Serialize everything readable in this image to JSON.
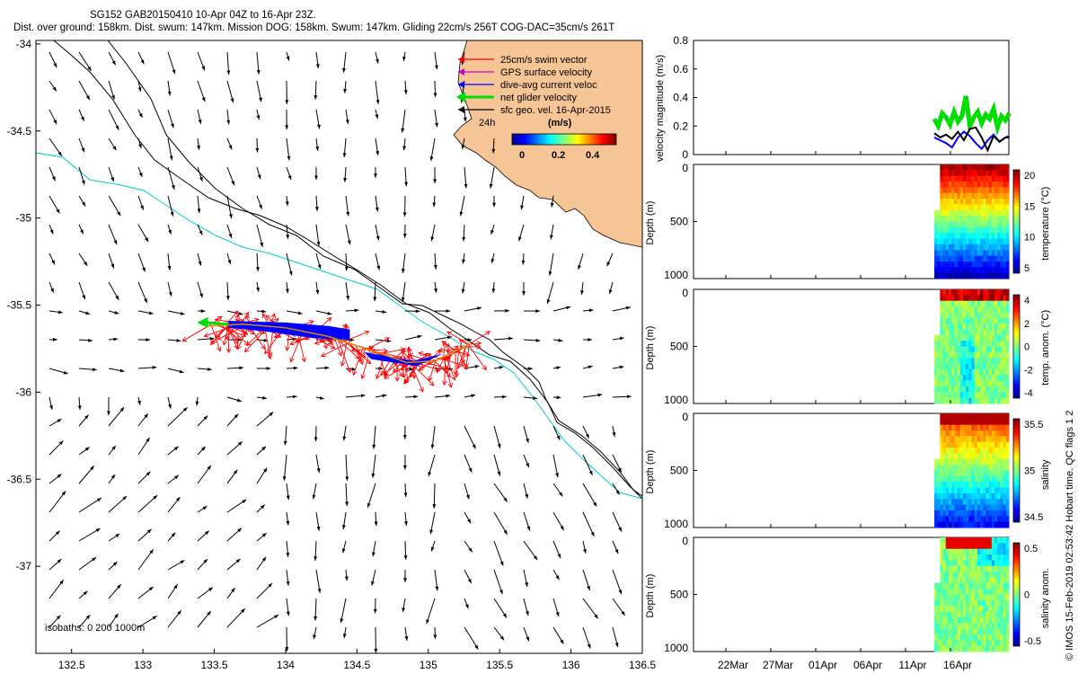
{
  "title_line1": "SG152 GAB20150410 10-Apr 04Z to 16-Apr 23Z.",
  "title_line2": "Dist. over ground: 158km. Dist. swum: 147km. Mission DOG: 158km. Swum: 147km. Gliding 22cm/s 256T COG-DAC=35cm/s 261T",
  "credit": "© IMOS 15-Feb-2019 02:53:42 Hobart time. QC flags 1  2",
  "colors": {
    "land": "#F6C596",
    "coast": "#000000",
    "isobath_0": "#000000",
    "isobath_200": "#000000",
    "isobath_1000": "#00CCCC",
    "swim": "#FF0000",
    "gps": "#CC00CC",
    "dac": "#0000FF",
    "net": "#00DD00",
    "sfc": "#000000"
  },
  "chart_data": [
    {
      "type": "scatter",
      "panel": "map",
      "xlim": [
        132.25,
        136.5
      ],
      "ylim": [
        -37.5,
        -33.98
      ],
      "x_ticks": [
        "132.5",
        "133",
        "133.5",
        "134",
        "134.5",
        "135",
        "135.5",
        "136",
        "136.5"
      ],
      "y_ticks": [
        "-34",
        "-34.5",
        "-35",
        "-35.5",
        "-36",
        "-36.5",
        "-37"
      ],
      "legend": {
        "placement": "top-right",
        "entries": [
          "25cm/s swim vector",
          "GPS surface velocity",
          "dive-avg current veloc",
          "net glider velocity",
          "sfc geo. vel. 16-Apr-2015"
        ],
        "scale_label": "24h"
      },
      "colorbar": {
        "label": "(m/s)",
        "ticks": [
          "0",
          "0.2",
          "0.4"
        ],
        "range": [
          0,
          0.45
        ]
      },
      "isobaths_label": "isobaths: 0   200  1000m",
      "glider_track": {
        "lon": [
          133.45,
          133.7,
          134.0,
          134.3,
          134.6,
          134.85,
          135.05,
          135.3
        ],
        "lat": [
          -35.62,
          -35.61,
          -35.63,
          -35.68,
          -35.76,
          -35.83,
          -35.82,
          -35.72
        ]
      },
      "net_glider_vector": {
        "start": [
          133.6,
          -35.61
        ],
        "end": [
          133.38,
          -35.6
        ]
      }
    },
    {
      "type": "line",
      "panel": "velocity",
      "ylabel": "velocity magnitude (m/s)",
      "ylim": [
        0,
        0.8
      ],
      "y_ticks": [
        "0",
        "0.2",
        "0.4",
        "0.6",
        "0.8"
      ],
      "x_ticks": [
        "22Mar",
        "27Mar",
        "01Apr",
        "06Apr",
        "11Apr",
        "16Apr"
      ],
      "series": [
        {
          "color": "#00DD00",
          "x": [
            0,
            0.4,
            0.8,
            1.2,
            1.6,
            2.0,
            2.4,
            2.8,
            3.2,
            3.6,
            4.0,
            4.4,
            4.8,
            5.2,
            5.6,
            6.0,
            6.4,
            6.8,
            7.2,
            7.6
          ],
          "y": [
            0.25,
            0.2,
            0.29,
            0.26,
            0.21,
            0.3,
            0.23,
            0.27,
            0.41,
            0.2,
            0.26,
            0.3,
            0.22,
            0.28,
            0.25,
            0.32,
            0.19,
            0.27,
            0.24,
            0.29
          ]
        },
        {
          "color": "#0000FF",
          "x": [
            0,
            0.6,
            1.2,
            1.8,
            2.4,
            3.0,
            3.6,
            4.2,
            4.8,
            5.4,
            6.0,
            6.6,
            7.2,
            7.6
          ],
          "y": [
            0.12,
            0.1,
            0.08,
            0.05,
            0.12,
            0.16,
            0.13,
            0.08,
            0.04,
            0.1,
            0.14,
            0.09,
            0.12,
            0.13
          ]
        },
        {
          "color": "#000000",
          "x": [
            0,
            0.6,
            1.2,
            1.8,
            2.4,
            3.0,
            3.6,
            4.2,
            4.8,
            5.4,
            6.0,
            6.6,
            7.2,
            7.6
          ],
          "y": [
            0.15,
            0.12,
            0.14,
            0.11,
            0.16,
            0.1,
            0.18,
            0.19,
            0.12,
            0.03,
            0.13,
            0.09,
            0.12,
            0.12
          ]
        }
      ]
    },
    {
      "type": "heatmap",
      "panel": "temperature",
      "ylabel": "Depth (m)",
      "y_ticks": [
        "0",
        "500",
        "1000"
      ],
      "colorbar_label": "temperature (°C)",
      "colorbar_ticks": [
        "20",
        "15",
        "10",
        "5"
      ],
      "crange": [
        3,
        22
      ]
    },
    {
      "type": "heatmap",
      "panel": "temp_anom",
      "ylabel": "Depth (m)",
      "y_ticks": [
        "0",
        "500",
        "1000"
      ],
      "colorbar_label": "temp. anom. (°C)",
      "colorbar_ticks": [
        "4",
        "2",
        "0",
        "-2",
        "-4"
      ],
      "crange": [
        -4,
        4
      ]
    },
    {
      "type": "heatmap",
      "panel": "salinity",
      "ylabel": "Depth (m)",
      "y_ticks": [
        "0",
        "500",
        "1000"
      ],
      "colorbar_label": "salinity",
      "colorbar_ticks": [
        "35.5",
        "35",
        "34.5"
      ],
      "crange": [
        34.3,
        35.8
      ]
    },
    {
      "type": "heatmap",
      "panel": "sal_anom",
      "ylabel": "Depth (m)",
      "y_ticks": [
        "0",
        "500",
        "1000"
      ],
      "colorbar_label": "salinity anom.",
      "colorbar_ticks": [
        "0.5",
        "0",
        "-0.5"
      ],
      "crange": [
        -0.55,
        0.55
      ]
    }
  ]
}
